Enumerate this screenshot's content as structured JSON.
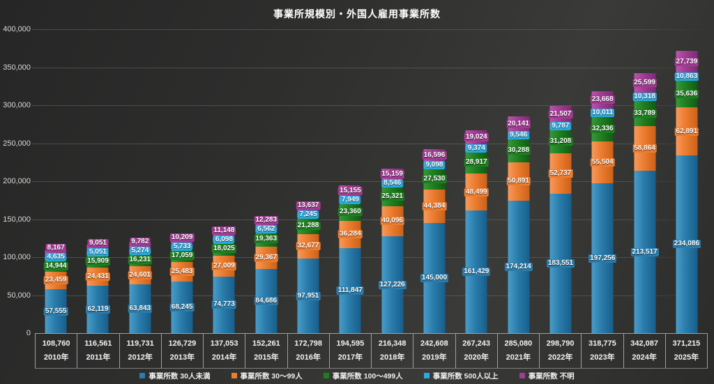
{
  "title": "事業所規模別・外国人雇用事業所数",
  "chart_data": {
    "type": "bar",
    "stacked": true,
    "grid": true,
    "legend_position": "bottom",
    "ylim": [
      0,
      400000
    ],
    "ytick_step": 50000,
    "categories": [
      "2010年",
      "2011年",
      "2012年",
      "2013年",
      "2014年",
      "2015年",
      "2016年",
      "2017年",
      "2018年",
      "2019年",
      "2020年",
      "2021年",
      "2022年",
      "2023年",
      "2024年",
      "2025年"
    ],
    "totals": [
      108760,
      116561,
      119731,
      126729,
      137053,
      152261,
      172798,
      194595,
      216348,
      242608,
      267243,
      285080,
      298790,
      318775,
      342087,
      371215
    ],
    "series": [
      {
        "name": "事業所数 30人未満",
        "color": "#2A7CAB",
        "color_light": "#4A9CC8",
        "color_dark": "#175E8C",
        "values": [
          57555,
          62119,
          63843,
          68245,
          74773,
          84686,
          97951,
          111847,
          127226,
          145000,
          161429,
          174214,
          183551,
          197256,
          213517,
          234086
        ]
      },
      {
        "name": "事業所数 30〜99人",
        "color": "#EC7C2F",
        "color_light": "#F69A5B",
        "color_dark": "#CC6118",
        "values": [
          23459,
          24431,
          24601,
          25483,
          27009,
          29367,
          32677,
          36284,
          40096,
          44384,
          48499,
          50891,
          52737,
          55504,
          58864,
          62891
        ]
      },
      {
        "name": "事業所数 100〜499人",
        "color": "#1F7E20",
        "color_light": "#36993A",
        "color_dark": "#115C12",
        "values": [
          14944,
          15909,
          16231,
          17059,
          18025,
          19363,
          21288,
          23360,
          25321,
          27530,
          28917,
          30288,
          31208,
          32336,
          33789,
          35636
        ]
      },
      {
        "name": "事業所数 500人以上",
        "color": "#2AA9E0",
        "color_light": "#5CC0EC",
        "color_dark": "#1485BE",
        "values": [
          4635,
          5051,
          5274,
          5733,
          6098,
          6562,
          7245,
          7949,
          8546,
          9098,
          9374,
          9546,
          9787,
          10011,
          10318,
          10863
        ]
      },
      {
        "name": "事業所数 不明",
        "color": "#A13B93",
        "color_light": "#BA55AC",
        "color_dark": "#7E2B74",
        "values": [
          8167,
          9051,
          9782,
          10209,
          11148,
          12283,
          13637,
          15155,
          15159,
          16596,
          19024,
          20141,
          21507,
          23668,
          25599,
          27739
        ]
      }
    ]
  }
}
